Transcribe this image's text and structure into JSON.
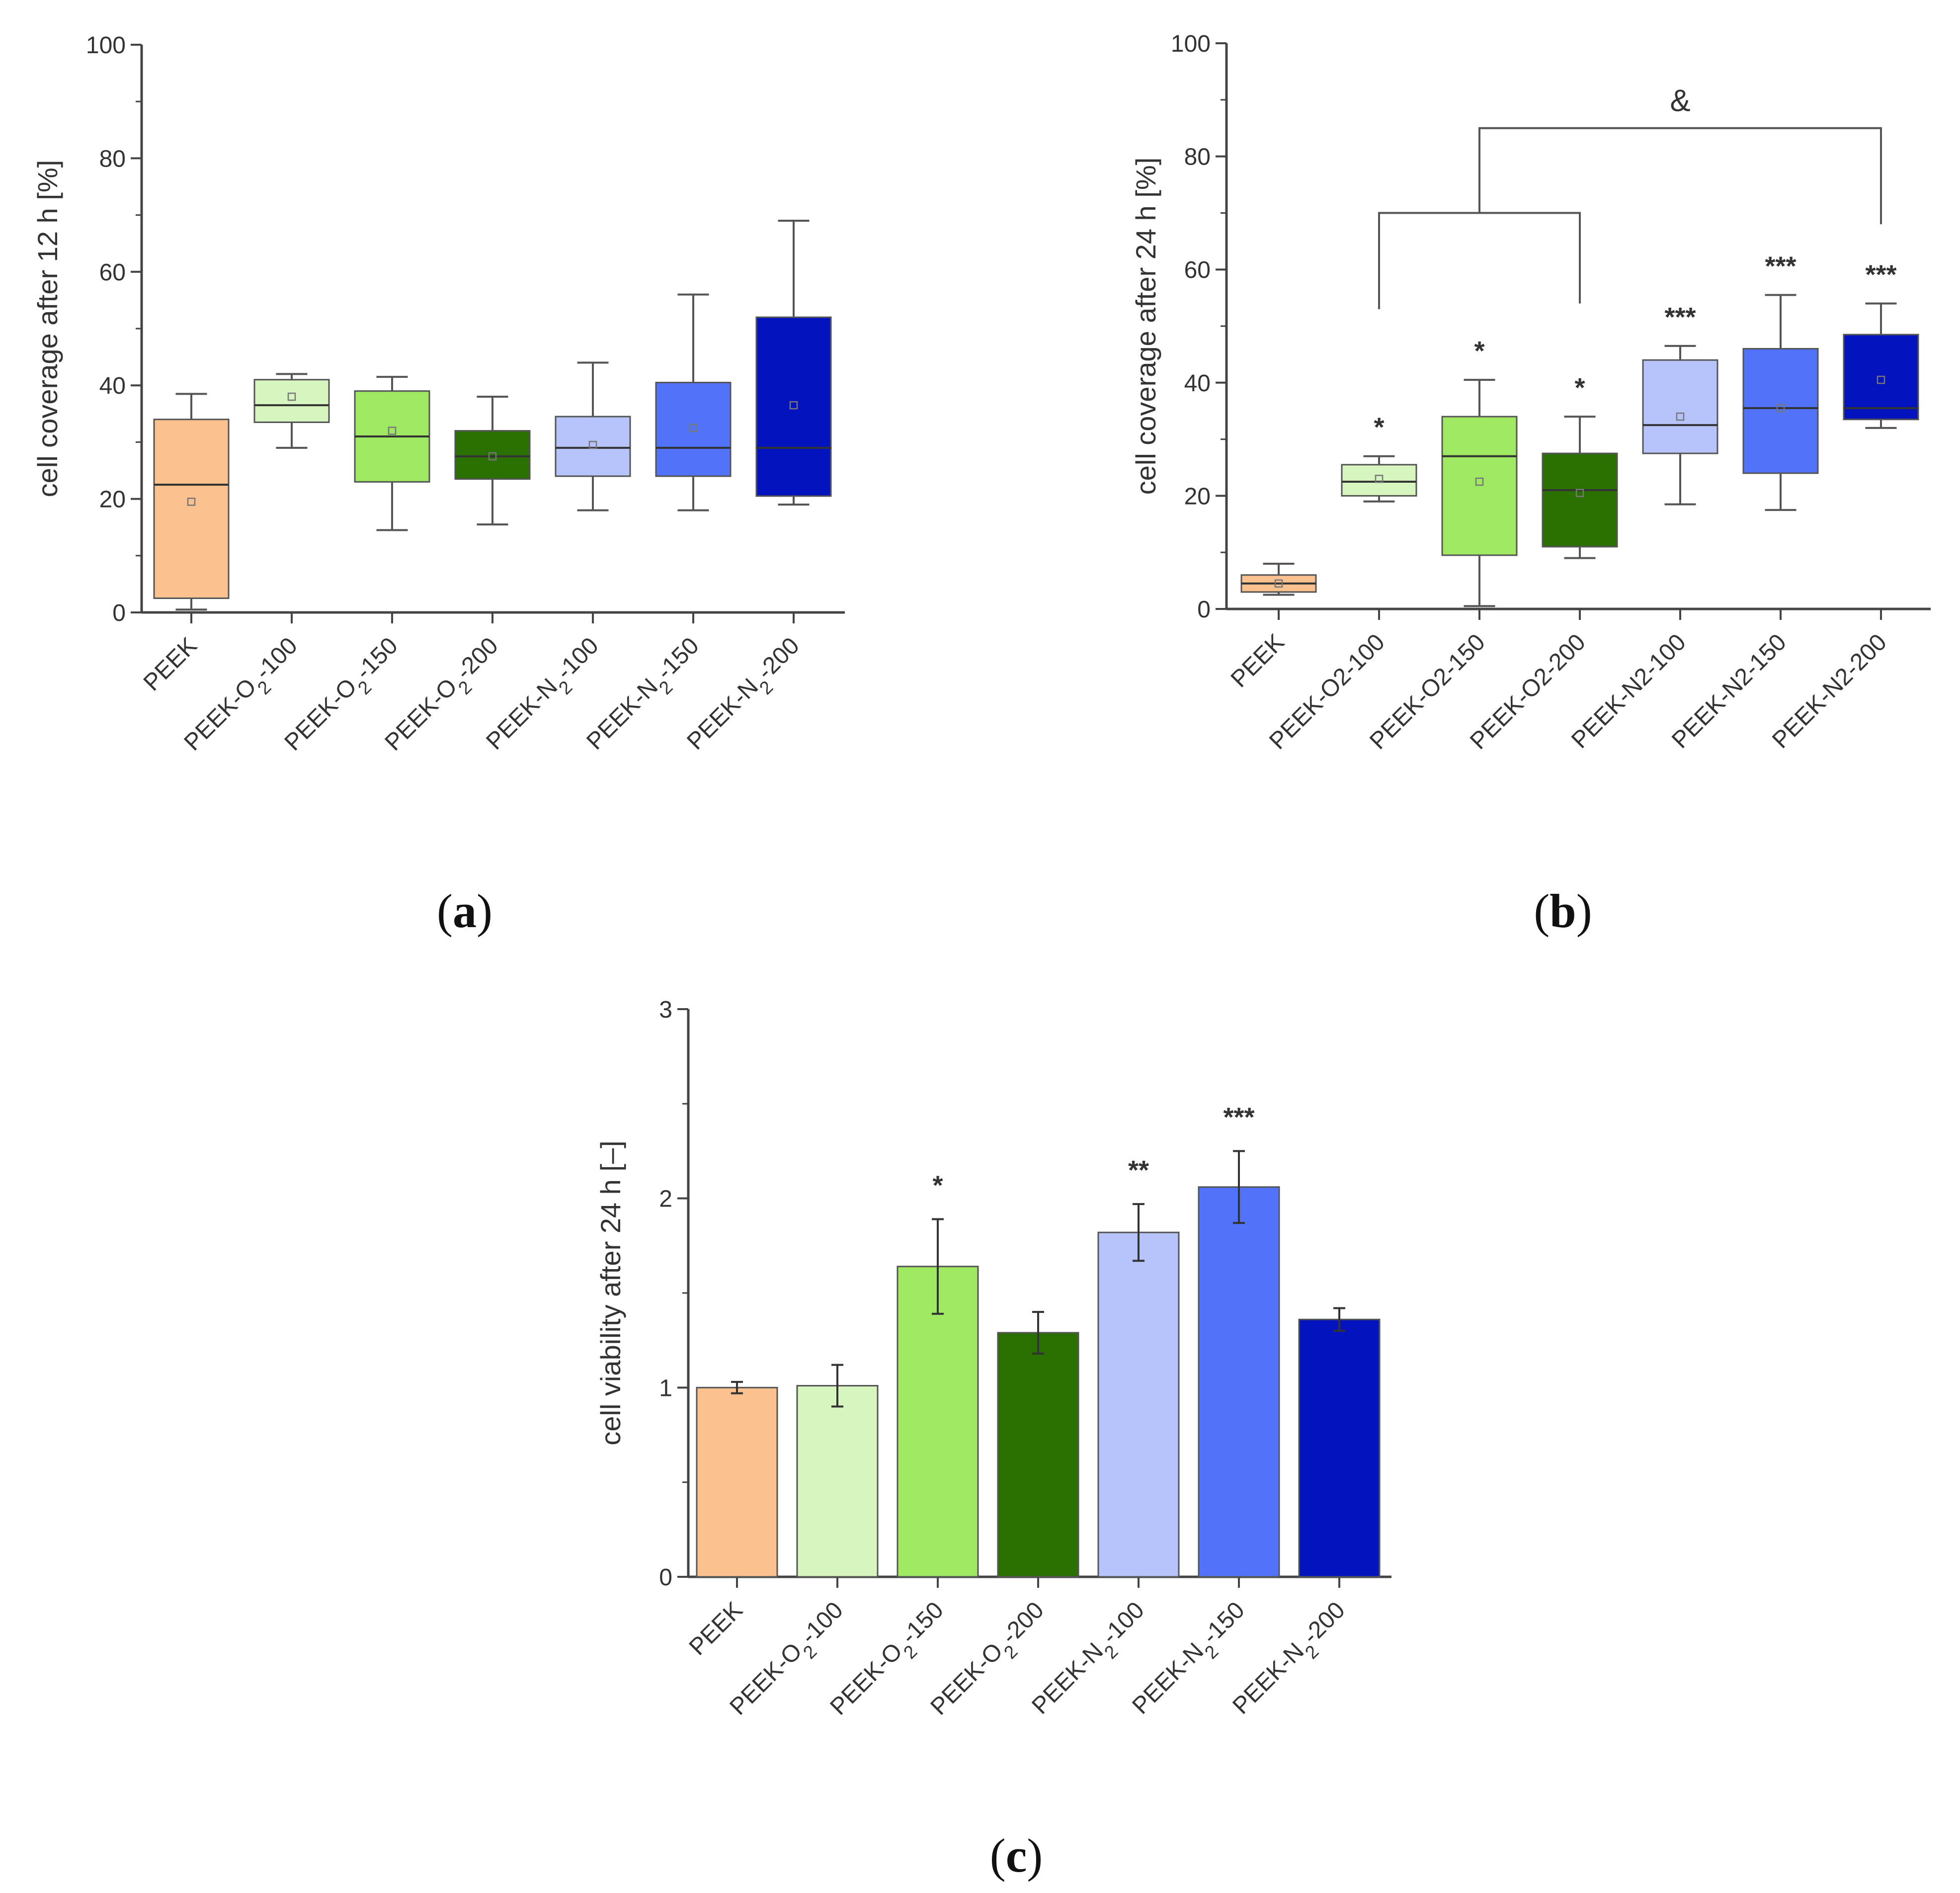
{
  "figure": {
    "panel_labels": {
      "a": {
        "open": "(",
        "letter": "a",
        "close": ")"
      },
      "b": {
        "open": "(",
        "letter": "b",
        "close": ")"
      },
      "c": {
        "open": "(",
        "letter": "c",
        "close": ")"
      }
    }
  },
  "colors": {
    "PEEK": "#fbc18f",
    "PEEK-O2-100": "#d6f5bf",
    "PEEK-O2-150": "#9fe861",
    "PEEK-O2-200": "#2a7000",
    "PEEK-N2-100": "#b7c4fb",
    "PEEK-N2-150": "#5173fa",
    "PEEK-N2-200": "#0314bf",
    "axis": "#444444",
    "whisker": "#555555",
    "median": "#333333",
    "bracket": "#555555"
  },
  "chart_data": [
    {
      "id": "a",
      "type": "box",
      "ylabel": "cell coverage after 12 h [%]",
      "xlabel": "",
      "ylim": [
        0,
        100
      ],
      "yticks": [
        "0",
        "20",
        "40",
        "60",
        "80",
        "100"
      ],
      "categories": [
        {
          "key": "PEEK",
          "label": [
            [
              "PEEK",
              ""
            ]
          ]
        },
        {
          "key": "PEEK-O2-100",
          "label": [
            [
              "PEEK-O",
              ""
            ],
            [
              "2",
              "sub"
            ],
            [
              "-100",
              ""
            ]
          ]
        },
        {
          "key": "PEEK-O2-150",
          "label": [
            [
              "PEEK-O",
              ""
            ],
            [
              "2",
              "sub"
            ],
            [
              "-150",
              ""
            ]
          ]
        },
        {
          "key": "PEEK-O2-200",
          "label": [
            [
              "PEEK-O",
              ""
            ],
            [
              "2",
              "sub"
            ],
            [
              "-200",
              ""
            ]
          ]
        },
        {
          "key": "PEEK-N2-100",
          "label": [
            [
              "PEEK-N",
              ""
            ],
            [
              "2",
              "sub"
            ],
            [
              "-100",
              ""
            ]
          ]
        },
        {
          "key": "PEEK-N2-150",
          "label": [
            [
              "PEEK-N",
              ""
            ],
            [
              "2",
              "sub"
            ],
            [
              "-150",
              ""
            ]
          ]
        },
        {
          "key": "PEEK-N2-200",
          "label": [
            [
              "PEEK-N",
              ""
            ],
            [
              "2",
              "sub"
            ],
            [
              "-200",
              ""
            ]
          ]
        }
      ],
      "boxes": [
        {
          "min": 0.5,
          "q1": 2.5,
          "median": 22.5,
          "q3": 34,
          "max": 38.5,
          "mean": 19.5
        },
        {
          "min": 29,
          "q1": 33.5,
          "median": 36.5,
          "q3": 41,
          "max": 42,
          "mean": 38
        },
        {
          "min": 14.5,
          "q1": 23,
          "median": 31,
          "q3": 39,
          "max": 41.5,
          "mean": 32
        },
        {
          "min": 15.5,
          "q1": 23.5,
          "median": 27.5,
          "q3": 32,
          "max": 38,
          "mean": 27.5
        },
        {
          "min": 18,
          "q1": 24,
          "median": 29,
          "q3": 34.5,
          "max": 44,
          "mean": 29.5
        },
        {
          "min": 18,
          "q1": 24,
          "median": 29,
          "q3": 40.5,
          "max": 56,
          "mean": 32.5
        },
        {
          "min": 19,
          "q1": 20.5,
          "median": 29,
          "q3": 52,
          "max": 69,
          "mean": 36.5
        }
      ],
      "significance": [
        "",
        "",
        "",
        "",
        "",
        "",
        ""
      ]
    },
    {
      "id": "b",
      "type": "box",
      "ylabel": "cell coverage after 24 h [%]",
      "xlabel": "",
      "ylim": [
        0,
        100
      ],
      "yticks": [
        "0",
        "20",
        "40",
        "60",
        "80",
        "100"
      ],
      "categories": [
        {
          "key": "PEEK",
          "label": [
            [
              "PEEK",
              ""
            ]
          ]
        },
        {
          "key": "PEEK-O2-100",
          "label": [
            [
              "PEEK-O2-100",
              ""
            ]
          ]
        },
        {
          "key": "PEEK-O2-150",
          "label": [
            [
              "PEEK-O2-150",
              ""
            ]
          ]
        },
        {
          "key": "PEEK-O2-200",
          "label": [
            [
              "PEEK-O2-200",
              ""
            ]
          ]
        },
        {
          "key": "PEEK-N2-100",
          "label": [
            [
              "PEEK-N2-100",
              ""
            ]
          ]
        },
        {
          "key": "PEEK-N2-150",
          "label": [
            [
              "PEEK-N2-150",
              ""
            ]
          ]
        },
        {
          "key": "PEEK-N2-200",
          "label": [
            [
              "PEEK-N2-200",
              ""
            ]
          ]
        }
      ],
      "boxes": [
        {
          "min": 2.5,
          "q1": 3,
          "median": 4.5,
          "q3": 6,
          "max": 8,
          "mean": 4.5
        },
        {
          "min": 19,
          "q1": 20,
          "median": 22.5,
          "q3": 25.5,
          "max": 27,
          "mean": 23
        },
        {
          "min": 0.5,
          "q1": 9.5,
          "median": 27,
          "q3": 34,
          "max": 40.5,
          "mean": 22.5
        },
        {
          "min": 9,
          "q1": 11,
          "median": 21,
          "q3": 27.5,
          "max": 34,
          "mean": 20.5
        },
        {
          "min": 18.5,
          "q1": 27.5,
          "median": 32.5,
          "q3": 44,
          "max": 46.5,
          "mean": 34
        },
        {
          "min": 17.5,
          "q1": 24,
          "median": 35.5,
          "q3": 46,
          "max": 55.5,
          "mean": 35.5
        },
        {
          "min": 32,
          "q1": 33.5,
          "median": 35.5,
          "q3": 48.5,
          "max": 54,
          "mean": 40.5
        }
      ],
      "significance": [
        "",
        "*",
        "*",
        "*",
        "***",
        "***",
        "***"
      ],
      "bracket": {
        "symbol": "&",
        "left_group": {
          "from_index": 1,
          "to_index": 3,
          "bar_y": 70,
          "left_end_y": 53,
          "right_end_y": 54
        },
        "right_target": {
          "index": 6,
          "end_y": 68
        },
        "top_y": 85,
        "symbol_y": 88
      }
    },
    {
      "id": "c",
      "type": "bar",
      "ylabel": "cell viability after 24 h [–]",
      "xlabel": "",
      "ylim": [
        0,
        3
      ],
      "yticks": [
        "0",
        "1",
        "2",
        "3"
      ],
      "categories": [
        {
          "key": "PEEK",
          "label": [
            [
              "PEEK",
              ""
            ]
          ]
        },
        {
          "key": "PEEK-O2-100",
          "label": [
            [
              "PEEK-O",
              ""
            ],
            [
              "2",
              "sub"
            ],
            [
              "-100",
              ""
            ]
          ]
        },
        {
          "key": "PEEK-O2-150",
          "label": [
            [
              "PEEK-O",
              ""
            ],
            [
              "2",
              "sub"
            ],
            [
              "-150",
              ""
            ]
          ]
        },
        {
          "key": "PEEK-O2-200",
          "label": [
            [
              "PEEK-O",
              ""
            ],
            [
              "2",
              "sub"
            ],
            [
              "-200",
              ""
            ]
          ]
        },
        {
          "key": "PEEK-N2-100",
          "label": [
            [
              "PEEK-N",
              ""
            ],
            [
              "2",
              "sub"
            ],
            [
              "-100",
              ""
            ]
          ]
        },
        {
          "key": "PEEK-N2-150",
          "label": [
            [
              "PEEK-N",
              ""
            ],
            [
              "2",
              "sub"
            ],
            [
              "-150",
              ""
            ]
          ]
        },
        {
          "key": "PEEK-N2-200",
          "label": [
            [
              "PEEK-N",
              ""
            ],
            [
              "2",
              "sub"
            ],
            [
              "-200",
              ""
            ]
          ]
        }
      ],
      "values": [
        1.0,
        1.01,
        1.64,
        1.29,
        1.82,
        2.06,
        1.36
      ],
      "errors": [
        0.03,
        0.11,
        0.25,
        0.11,
        0.15,
        0.19,
        0.06
      ],
      "significance": [
        "",
        "",
        "*",
        "",
        "**",
        "***",
        ""
      ]
    }
  ]
}
